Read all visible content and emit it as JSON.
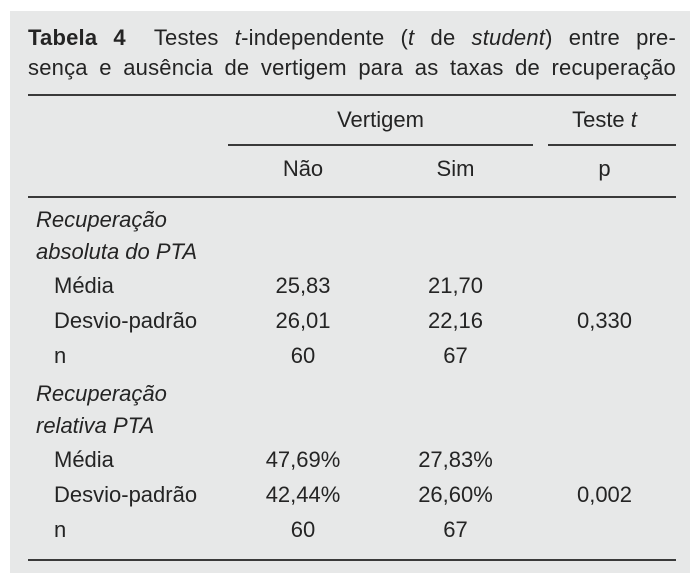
{
  "panel": {
    "caption": {
      "label": "Tabela 4",
      "line1_segments": [
        {
          "t": "Testes ",
          "s": "n"
        },
        {
          "t": "t",
          "s": "i"
        },
        {
          "t": "-independente (",
          "s": "n"
        },
        {
          "t": "t",
          "s": "i"
        },
        {
          "t": " de ",
          "s": "n"
        },
        {
          "t": "student",
          "s": "i"
        },
        {
          "t": ") entre pre-",
          "s": "n"
        }
      ],
      "line2": "sença e ausência de vertigem para as taxas de recuperação"
    },
    "header": {
      "vertigem_label": "Vertigem",
      "teste_segments": [
        {
          "t": "Teste ",
          "s": "n"
        },
        {
          "t": "t",
          "s": "i"
        }
      ],
      "sub_nao": "Não",
      "sub_sim": "Sim",
      "sub_p": "p"
    },
    "body": {
      "group1": {
        "line1": "Recuperação",
        "line2": "absoluta do PTA",
        "rows": [
          {
            "label": "Média",
            "nao": "25,83",
            "sim": "21,70",
            "p": ""
          },
          {
            "label": "Desvio-padrão",
            "nao": "26,01",
            "sim": "22,16",
            "p": "0,330"
          },
          {
            "label": "n",
            "nao": "60",
            "sim": "67",
            "p": ""
          }
        ]
      },
      "group2": {
        "line1": "Recuperação",
        "line2": "relativa PTA",
        "rows": [
          {
            "label": "Média",
            "nao": "47,69%",
            "sim": "27,83%",
            "p": ""
          },
          {
            "label": "Desvio-padrão",
            "nao": "42,44%",
            "sim": "26,60%",
            "p": "0,002"
          },
          {
            "label": "n",
            "nao": "60",
            "sim": "67",
            "p": ""
          }
        ]
      }
    },
    "colors": {
      "panel_bg": "#e7e8e8",
      "text": "#242424",
      "rule": "#3a3a3a"
    }
  }
}
